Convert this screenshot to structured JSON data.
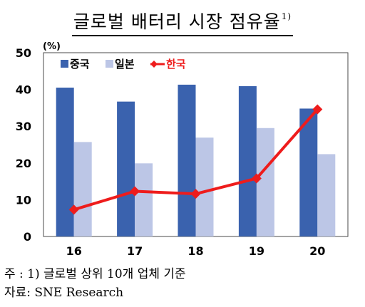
{
  "title": "글로벌 배터리 시장 점유율",
  "title_sup": "1)",
  "footnote": "주 : 1) 글로벌 상위 10개 업체 기준",
  "source": "자료: SNE Research",
  "chart_data": {
    "type": "bar",
    "unit_label": "(%)",
    "categories": [
      "16",
      "17",
      "18",
      "19",
      "20"
    ],
    "ylim": [
      0,
      50
    ],
    "yticks": [
      0,
      10,
      20,
      30,
      40,
      50
    ],
    "grid": false,
    "legend_position": "top-left",
    "series": [
      {
        "name": "중국",
        "kind": "bar",
        "color": "#3a62ae",
        "values": [
          40.5,
          36.7,
          41.3,
          40.9,
          34.8
        ]
      },
      {
        "name": "일본",
        "kind": "bar",
        "color": "#bcc6e6",
        "values": [
          25.7,
          19.9,
          26.9,
          29.5,
          22.4
        ]
      },
      {
        "name": "한국",
        "kind": "line",
        "color": "#ee1c1c",
        "values": [
          7.3,
          12.3,
          11.6,
          15.8,
          34.6
        ]
      }
    ]
  }
}
